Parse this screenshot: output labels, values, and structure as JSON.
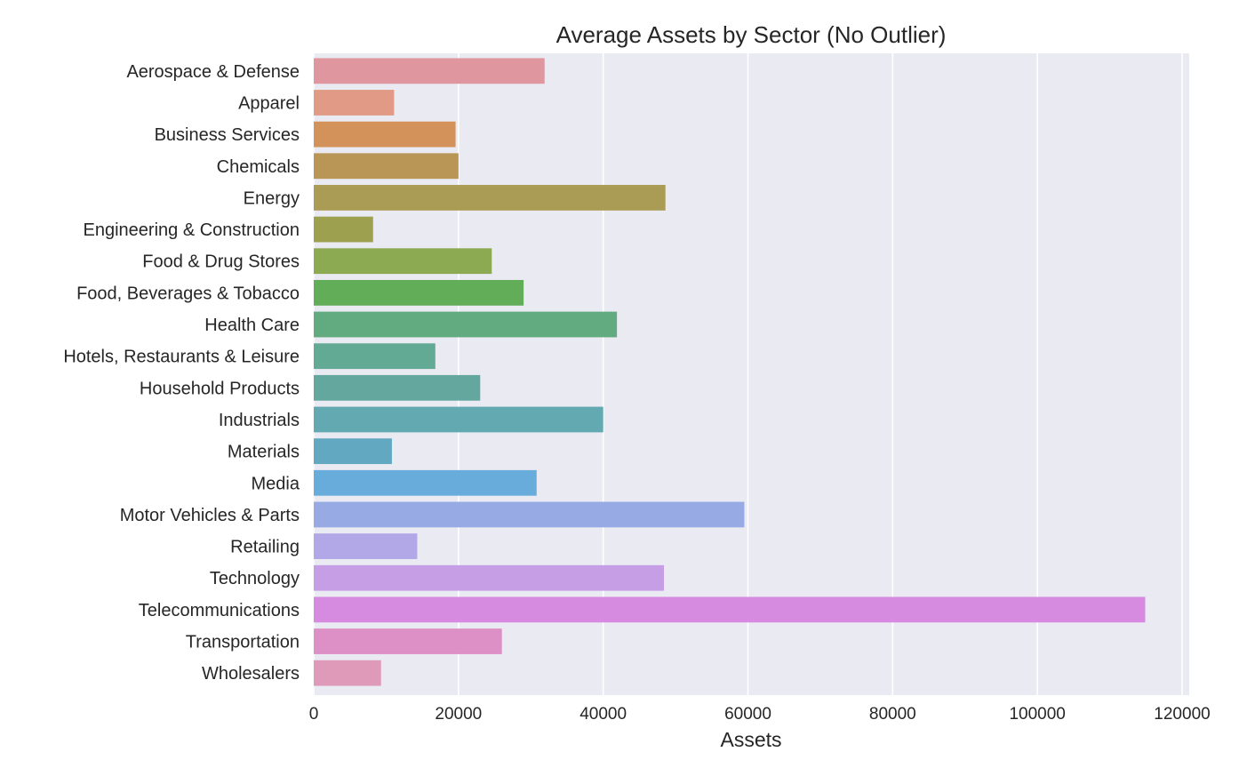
{
  "chart_data": {
    "type": "bar",
    "orientation": "horizontal",
    "title": "Average Assets by Sector (No Outlier)",
    "xlabel": "Assets",
    "ylabel": "",
    "xlim": [
      0,
      120000
    ],
    "x_ticks": [
      0,
      20000,
      40000,
      60000,
      80000,
      100000,
      120000
    ],
    "grid": true,
    "categories": [
      "Aerospace & Defense",
      "Apparel",
      "Business Services",
      "Chemicals",
      "Energy",
      "Engineering & Construction",
      "Food & Drug Stores",
      "Food, Beverages & Tobacco",
      "Health Care",
      "Hotels, Restaurants & Leisure",
      "Household Products",
      "Industrials",
      "Materials",
      "Media",
      "Motor Vehicles & Parts",
      "Retailing",
      "Technology",
      "Telecommunications",
      "Transportation",
      "Wholesalers"
    ],
    "values": [
      31900,
      11100,
      19600,
      20000,
      48600,
      8200,
      24600,
      29000,
      41900,
      16800,
      23000,
      40000,
      10800,
      30800,
      59500,
      14300,
      48400,
      114900,
      26000,
      9300
    ],
    "colors": [
      "#e0969e",
      "#e19a85",
      "#d4925b",
      "#b99656",
      "#ab9c55",
      "#9ca04f",
      "#8caa52",
      "#62ad58",
      "#62aa7f",
      "#63aa94",
      "#63a79f",
      "#62a9b1",
      "#63a8c1",
      "#67acdb",
      "#97aae3",
      "#b2a7e7",
      "#c69ee5",
      "#d78be0",
      "#dd90c5",
      "#df9ab9"
    ]
  }
}
